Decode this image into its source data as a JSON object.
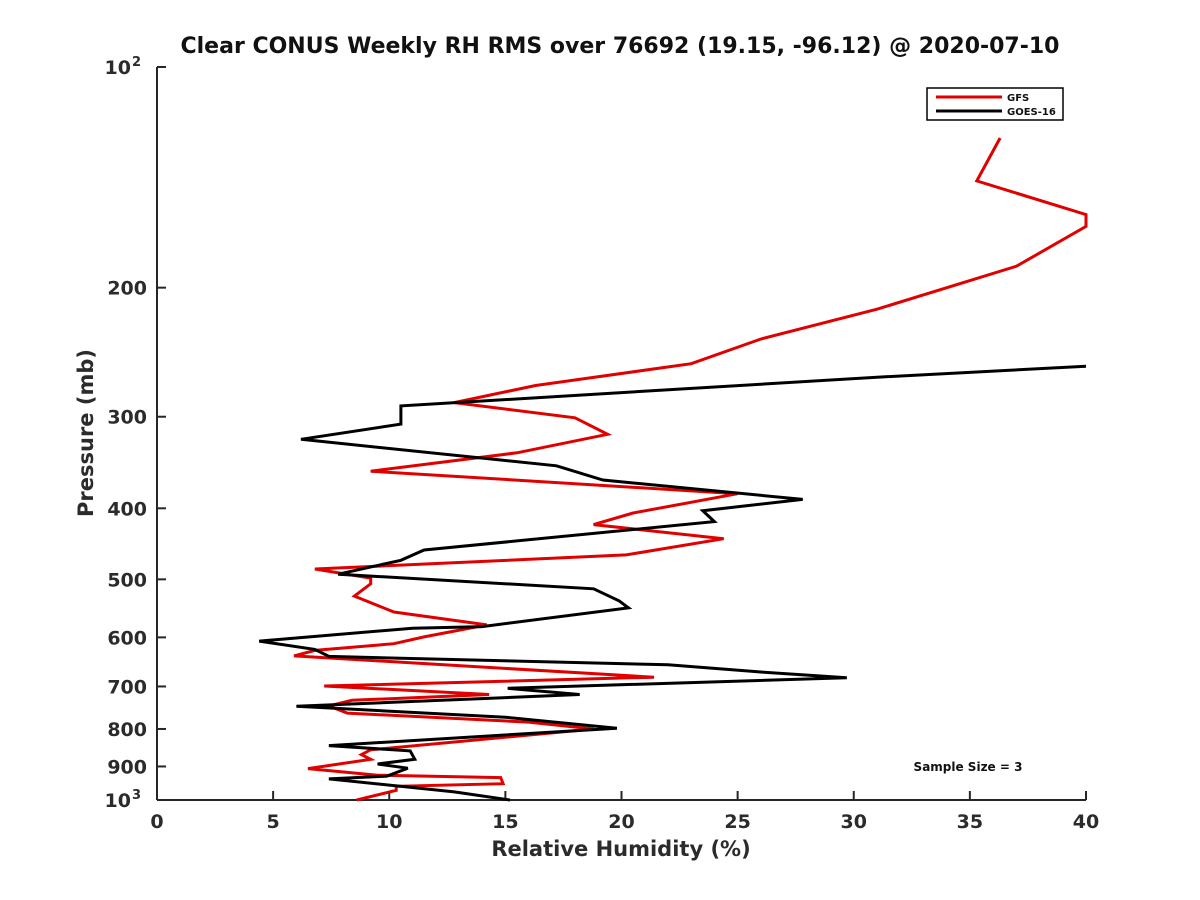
{
  "chart_data": {
    "type": "line",
    "title": "Clear CONUS Weekly RH RMS over 76692 (19.15, -96.12) @ 2020-07-10",
    "xlabel": "Relative Humidity (%)",
    "ylabel": "Pressure (mb)",
    "xlim": [
      0,
      40
    ],
    "ylim": [
      100,
      1000
    ],
    "y_scale": "log",
    "y_reversed": true,
    "x_ticks": [
      "0",
      "5",
      "10",
      "15",
      "20",
      "25",
      "30",
      "35",
      "40"
    ],
    "y_ticks": [
      {
        "value": 100,
        "base": "10",
        "exp": "2"
      },
      {
        "value": 200,
        "label": "200"
      },
      {
        "value": 300,
        "label": "300"
      },
      {
        "value": 400,
        "label": "400"
      },
      {
        "value": 500,
        "label": "500"
      },
      {
        "value": 600,
        "label": "600"
      },
      {
        "value": 700,
        "label": "700"
      },
      {
        "value": 800,
        "label": "800"
      },
      {
        "value": 900,
        "label": "900"
      },
      {
        "value": 1000,
        "base": "10",
        "exp": "3"
      }
    ],
    "legend_position": "top-right",
    "series": [
      {
        "name": "GFS",
        "color": "#e00000",
        "points": [
          [
            36.3,
            125
          ],
          [
            35.3,
            143
          ],
          [
            40,
            159
          ],
          [
            40,
            165
          ],
          [
            37,
            187
          ],
          [
            31,
            214
          ],
          [
            26,
            235
          ],
          [
            23,
            254
          ],
          [
            16.3,
            272
          ],
          [
            12.8,
            287
          ],
          [
            18,
            301
          ],
          [
            19.4,
            317
          ],
          [
            15.5,
            336
          ],
          [
            9.2,
            356
          ],
          [
            25,
            382
          ],
          [
            20.5,
            406
          ],
          [
            18.8,
            421
          ],
          [
            24.4,
            440
          ],
          [
            20.2,
            463
          ],
          [
            6.8,
            484
          ],
          [
            9.2,
            498
          ],
          [
            9.2,
            507
          ],
          [
            8.5,
            527
          ],
          [
            10.2,
            554
          ],
          [
            14.2,
            577
          ],
          [
            11.5,
            599
          ],
          [
            10.2,
            612
          ],
          [
            6.8,
            625
          ],
          [
            5.9,
            636
          ],
          [
            21.4,
            680
          ],
          [
            7.2,
            699
          ],
          [
            14.3,
            718
          ],
          [
            8.4,
            731
          ],
          [
            7.4,
            744
          ],
          [
            8.2,
            761
          ],
          [
            16,
            783
          ],
          [
            18.8,
            800
          ],
          [
            9.2,
            854
          ],
          [
            8.8,
            867
          ],
          [
            9.2,
            880
          ],
          [
            6.5,
            906
          ],
          [
            9.5,
            925
          ],
          [
            14.8,
            932
          ],
          [
            14.9,
            950
          ],
          [
            10.3,
            958
          ],
          [
            10.3,
            970
          ],
          [
            8.6,
            1000
          ]
        ]
      },
      {
        "name": "GOES-16",
        "color": "#000000",
        "points": [
          [
            40,
            256
          ],
          [
            31,
            265
          ],
          [
            10.5,
            290
          ],
          [
            10.5,
            307
          ],
          [
            6.2,
            322
          ],
          [
            17.2,
            350
          ],
          [
            19.2,
            366
          ],
          [
            27.8,
            389
          ],
          [
            23.5,
            403
          ],
          [
            24,
            417
          ],
          [
            11.5,
            456
          ],
          [
            10.5,
            471
          ],
          [
            7.8,
            492
          ],
          [
            18.8,
            515
          ],
          [
            19.9,
            535
          ],
          [
            20.3,
            547
          ],
          [
            14,
            580
          ],
          [
            11,
            583
          ],
          [
            4.4,
            607
          ],
          [
            6.8,
            623
          ],
          [
            7.4,
            637
          ],
          [
            22,
            654
          ],
          [
            26,
            669
          ],
          [
            29.7,
            681
          ],
          [
            15.1,
            704
          ],
          [
            18.2,
            718
          ],
          [
            6,
            745
          ],
          [
            15,
            771
          ],
          [
            19.8,
            798
          ],
          [
            7.4,
            843
          ],
          [
            10.9,
            857
          ],
          [
            11.1,
            880
          ],
          [
            9.5,
            893
          ],
          [
            10.8,
            905
          ],
          [
            9.9,
            928
          ],
          [
            7.4,
            936
          ],
          [
            12.8,
            975
          ],
          [
            15.2,
            1000
          ]
        ]
      }
    ],
    "annotation": "Sample Size = 3"
  }
}
